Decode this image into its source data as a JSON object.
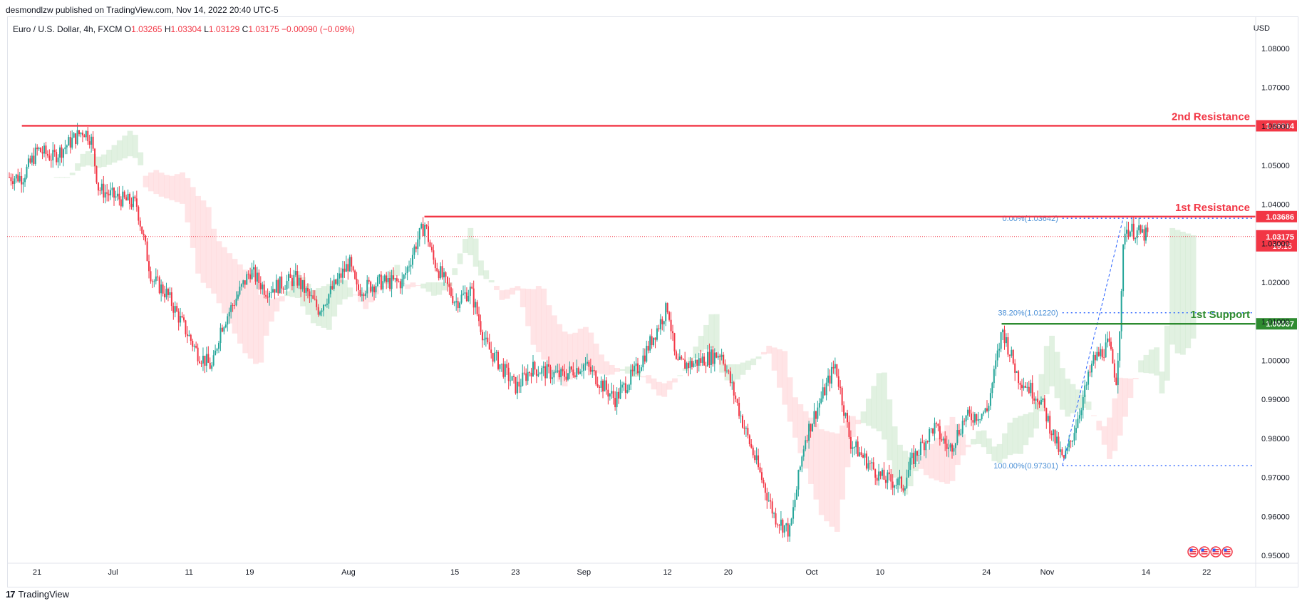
{
  "header": {
    "published_by": "desmondlzw published on TradingView.com, Nov 14, 2022 20:40 UTC-5",
    "symbol": "Euro / U.S. Dollar, 4h, FXCM",
    "ohlc": {
      "open_label": "O",
      "open": "1.03265",
      "high_label": "H",
      "high": "1.03304",
      "low_label": "L",
      "low": "1.03129",
      "close_label": "C",
      "close": "1.03175",
      "change": "−0.00090 (−0.09%)"
    },
    "currency": "USD"
  },
  "footer": {
    "brand": "TradingView",
    "logo_text": "17"
  },
  "colors": {
    "up": "#26a69a",
    "down": "#f23645",
    "resistance": "#f23645",
    "support": "#2e8b30",
    "fib": "#2962ff",
    "fib_text": "#4a8fd6",
    "cloud_red": "#ffcdd2",
    "cloud_green": "#c8e6c9"
  },
  "chart_data": {
    "type": "candlestick",
    "timeframe": "4h",
    "ylim": [
      0.948,
      1.088
    ],
    "yticks": [
      "1.08000",
      "1.07000",
      "1.06000",
      "1.05000",
      "1.04000",
      "1.03000",
      "1.02000",
      "1.01000",
      "1.00000",
      "0.99000",
      "0.98000",
      "0.97000",
      "0.96000",
      "0.95000"
    ],
    "ytick_values": [
      1.08,
      1.07,
      1.06,
      1.05,
      1.04,
      1.03,
      1.02,
      1.01,
      1.0,
      0.99,
      0.98,
      0.97,
      0.96,
      0.95
    ],
    "xticks": [
      "21",
      "Jul",
      "11",
      "19",
      "Aug",
      "15",
      "23",
      "Sep",
      "12",
      "20",
      "Oct",
      "10",
      "24",
      "Nov",
      "14",
      "22"
    ],
    "xtick_dates": [
      "2022-06-21",
      "2022-07-01",
      "2022-07-11",
      "2022-07-19",
      "2022-08-01",
      "2022-08-15",
      "2022-08-23",
      "2022-09-01",
      "2022-09-12",
      "2022-09-20",
      "2022-10-01",
      "2022-10-10",
      "2022-10-24",
      "2022-11-01",
      "2022-11-14",
      "2022-11-22"
    ],
    "price_anchors": [
      [
        "2022-06-19",
        1.047
      ],
      [
        "2022-06-21",
        1.054
      ],
      [
        "2022-06-23",
        1.052
      ],
      [
        "2022-06-27",
        1.059
      ],
      [
        "2022-06-28",
        1.057
      ],
      [
        "2022-06-29",
        1.044
      ],
      [
        "2022-07-01",
        1.042
      ],
      [
        "2022-07-04",
        1.04
      ],
      [
        "2022-07-06",
        1.021
      ],
      [
        "2022-07-08",
        1.017
      ],
      [
        "2022-07-12",
        1.002
      ],
      [
        "2022-07-14",
        0.998
      ],
      [
        "2022-07-15",
        1.008
      ],
      [
        "2022-07-19",
        1.023
      ],
      [
        "2022-07-21",
        1.018
      ],
      [
        "2022-07-25",
        1.021
      ],
      [
        "2022-07-28",
        1.013
      ],
      [
        "2022-08-01",
        1.025
      ],
      [
        "2022-08-02",
        1.018
      ],
      [
        "2022-08-05",
        1.02
      ],
      [
        "2022-08-08",
        1.02
      ],
      [
        "2022-08-10",
        1.031
      ],
      [
        "2022-08-11",
        1.035
      ],
      [
        "2022-08-12",
        1.026
      ],
      [
        "2022-08-15",
        1.015
      ],
      [
        "2022-08-17",
        1.018
      ],
      [
        "2022-08-19",
        1.004
      ],
      [
        "2022-08-23",
        0.993
      ],
      [
        "2022-08-25",
        0.998
      ],
      [
        "2022-08-29",
        0.996
      ],
      [
        "2022-09-01",
        0.999
      ],
      [
        "2022-09-05",
        0.99
      ],
      [
        "2022-09-08",
        0.998
      ],
      [
        "2022-09-12",
        1.014
      ],
      [
        "2022-09-13",
        0.999
      ],
      [
        "2022-09-15",
        0.999
      ],
      [
        "2022-09-19",
        1.002
      ],
      [
        "2022-09-22",
        0.983
      ],
      [
        "2022-09-26",
        0.96
      ],
      [
        "2022-09-28",
        0.956
      ],
      [
        "2022-09-30",
        0.98
      ],
      [
        "2022-10-04",
        0.999
      ],
      [
        "2022-10-06",
        0.979
      ],
      [
        "2022-10-10",
        0.97
      ],
      [
        "2022-10-13",
        0.968
      ],
      [
        "2022-10-14",
        0.974
      ],
      [
        "2022-10-17",
        0.983
      ],
      [
        "2022-10-19",
        0.977
      ],
      [
        "2022-10-21",
        0.985
      ],
      [
        "2022-10-24",
        0.987
      ],
      [
        "2022-10-26",
        1.008
      ],
      [
        "2022-10-28",
        0.996
      ],
      [
        "2022-10-31",
        0.99
      ],
      [
        "2022-11-03",
        0.974
      ],
      [
        "2022-11-04",
        0.979
      ],
      [
        "2022-11-07",
        1.0
      ],
      [
        "2022-11-09",
        1.004
      ],
      [
        "2022-11-10",
        0.995
      ],
      [
        "2022-11-10T18",
        1.018
      ],
      [
        "2022-11-11",
        1.034
      ],
      [
        "2022-11-14",
        1.032
      ]
    ],
    "levels": [
      {
        "name": "2nd Resistance",
        "value": 1.06014,
        "label": "1.06014",
        "start": "2022-06-19",
        "type": "resistance"
      },
      {
        "name": "1st Resistance",
        "value": 1.03686,
        "label": "1.03686",
        "start": "2022-08-11",
        "type": "resistance"
      },
      {
        "name": "1st Support",
        "value": 1.00937,
        "label": "1.00937",
        "start": "2022-10-26",
        "type": "support"
      }
    ],
    "current_price": {
      "value": 1.03175,
      "label": "1.03175",
      "countdown": "19:15"
    },
    "fibonacci": [
      {
        "label": "0.00%(1.03642)",
        "value": 1.03642
      },
      {
        "label": "38.20%(1.01220)",
        "value": 1.0122
      },
      {
        "label": "100.00%(0.97301)",
        "value": 0.97301
      }
    ],
    "fib_anchor_from": "2022-11-03",
    "fib_anchor_to": "2022-11-11",
    "grid": false
  }
}
